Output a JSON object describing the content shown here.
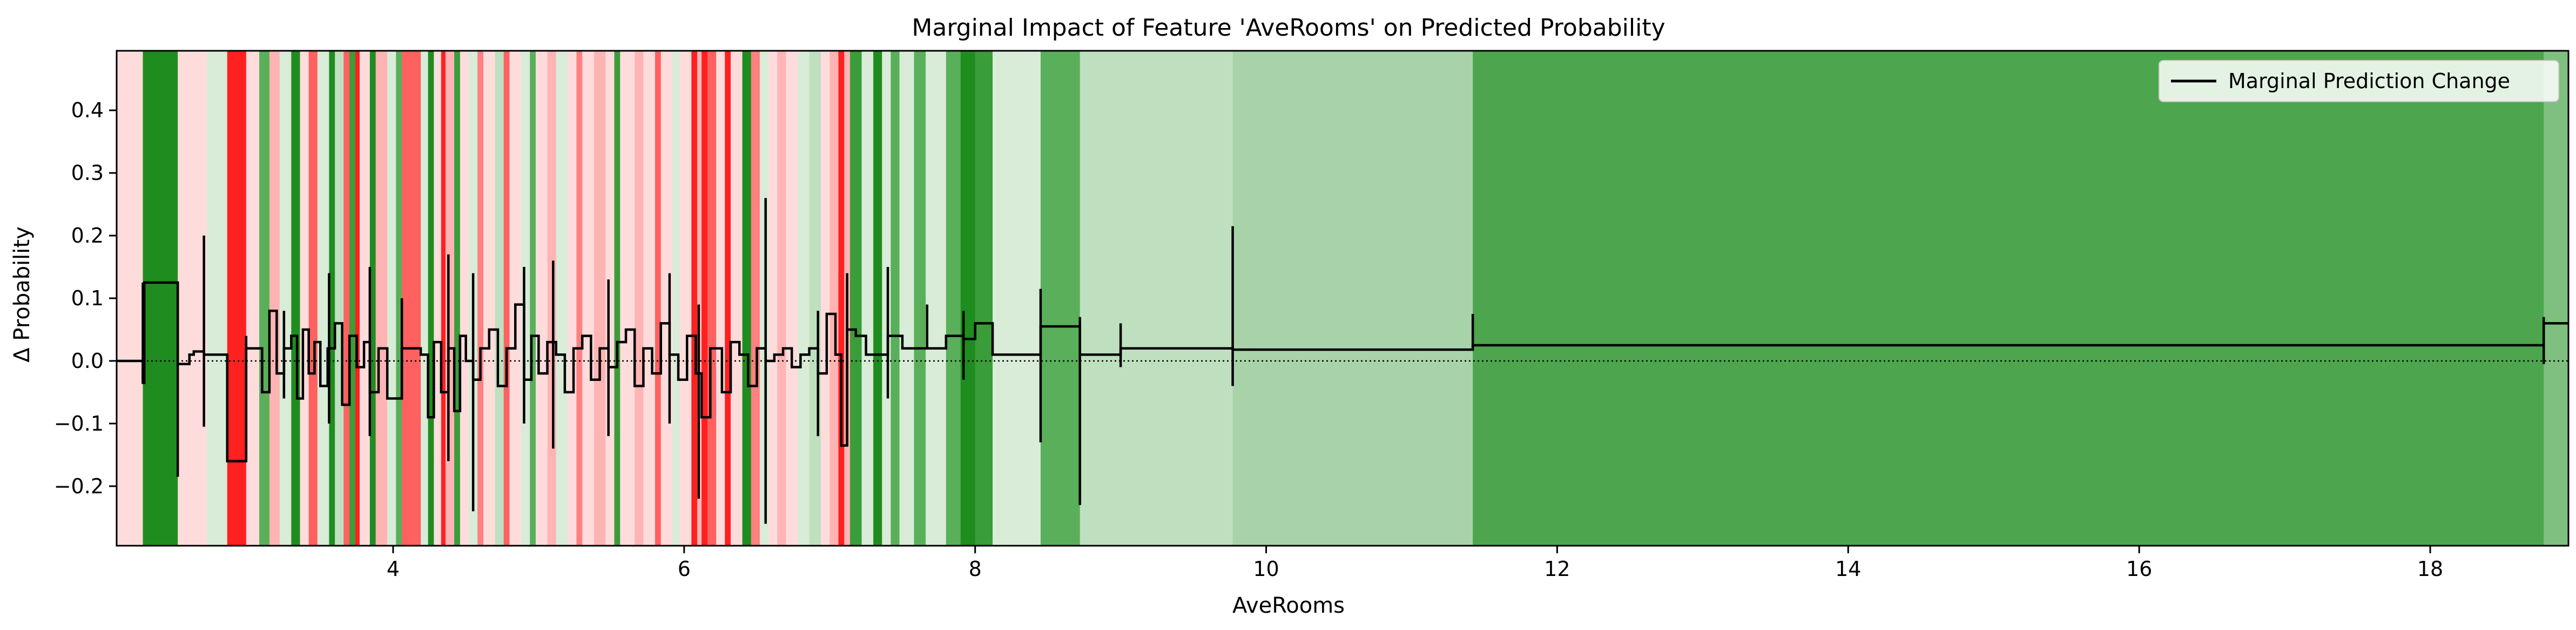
{
  "chart_data": {
    "type": "line",
    "title": "Marginal Impact of Feature 'AveRooms' on Predicted Probability",
    "xlabel": "AveRooms",
    "ylabel": "Δ Probability",
    "xlim": [
      2.1,
      18.95
    ],
    "ylim": [
      -0.295,
      0.495
    ],
    "x_ticks": [
      4,
      6,
      8,
      10,
      12,
      14,
      16,
      18
    ],
    "x_tick_labels": [
      "4",
      "6",
      "8",
      "10",
      "12",
      "14",
      "16",
      "18"
    ],
    "y_ticks": [
      -0.2,
      -0.1,
      0.0,
      0.1,
      0.2,
      0.3,
      0.4
    ],
    "y_tick_labels": [
      "−0.2",
      "−0.1",
      "0.0",
      "0.1",
      "0.2",
      "0.3",
      "0.4"
    ],
    "legend": {
      "position": "upper-right",
      "entries": [
        "Marginal Prediction Change"
      ]
    },
    "zero_line": {
      "y": 0.0,
      "style": "dotted"
    },
    "background_bands": [
      {
        "x0": 2.1,
        "x1": 2.28,
        "color": "#ffdcdc"
      },
      {
        "x0": 2.28,
        "x1": 2.52,
        "color": "#1f8c1f"
      },
      {
        "x0": 2.52,
        "x1": 2.72,
        "color": "#ffdcdc"
      },
      {
        "x0": 2.72,
        "x1": 2.86,
        "color": "#d8ecd8"
      },
      {
        "x0": 2.86,
        "x1": 2.99,
        "color": "#ff2020"
      },
      {
        "x0": 2.99,
        "x1": 3.08,
        "color": "#ffdcdc"
      },
      {
        "x0": 3.08,
        "x1": 3.15,
        "color": "#5aaf5a"
      },
      {
        "x0": 3.15,
        "x1": 3.22,
        "color": "#ffb4b4"
      },
      {
        "x0": 3.22,
        "x1": 3.3,
        "color": "#d8ecd8"
      },
      {
        "x0": 3.3,
        "x1": 3.36,
        "color": "#1f8c1f"
      },
      {
        "x0": 3.36,
        "x1": 3.42,
        "color": "#ffdcdc"
      },
      {
        "x0": 3.42,
        "x1": 3.48,
        "color": "#ff6060"
      },
      {
        "x0": 3.48,
        "x1": 3.56,
        "color": "#d8ecd8"
      },
      {
        "x0": 3.56,
        "x1": 3.6,
        "color": "#1f8c1f"
      },
      {
        "x0": 3.6,
        "x1": 3.66,
        "color": "#bfe0bf"
      },
      {
        "x0": 3.66,
        "x1": 3.7,
        "color": "#ff6060"
      },
      {
        "x0": 3.7,
        "x1": 3.74,
        "color": "#3a9d3a"
      },
      {
        "x0": 3.74,
        "x1": 3.77,
        "color": "#ff2020"
      },
      {
        "x0": 3.77,
        "x1": 3.84,
        "color": "#ffdcdc"
      },
      {
        "x0": 3.84,
        "x1": 3.88,
        "color": "#1f8c1f"
      },
      {
        "x0": 3.88,
        "x1": 3.96,
        "color": "#ffb4b4"
      },
      {
        "x0": 3.96,
        "x1": 4.02,
        "color": "#d8ecd8"
      },
      {
        "x0": 4.02,
        "x1": 4.06,
        "color": "#5aaf5a"
      },
      {
        "x0": 4.06,
        "x1": 4.19,
        "color": "#ff6060"
      },
      {
        "x0": 4.19,
        "x1": 4.24,
        "color": "#d8ecd8"
      },
      {
        "x0": 4.24,
        "x1": 4.28,
        "color": "#1f8c1f"
      },
      {
        "x0": 4.28,
        "x1": 4.33,
        "color": "#ffdcdc"
      },
      {
        "x0": 4.33,
        "x1": 4.36,
        "color": "#ff2020"
      },
      {
        "x0": 4.36,
        "x1": 4.42,
        "color": "#ffb4b4"
      },
      {
        "x0": 4.42,
        "x1": 4.46,
        "color": "#3a9d3a"
      },
      {
        "x0": 4.46,
        "x1": 4.52,
        "color": "#ffdcdc"
      },
      {
        "x0": 4.52,
        "x1": 4.58,
        "color": "#d8ecd8"
      },
      {
        "x0": 4.58,
        "x1": 4.62,
        "color": "#ff8080"
      },
      {
        "x0": 4.62,
        "x1": 4.7,
        "color": "#ffdcdc"
      },
      {
        "x0": 4.7,
        "x1": 4.76,
        "color": "#bfe0bf"
      },
      {
        "x0": 4.76,
        "x1": 4.8,
        "color": "#ff6060"
      },
      {
        "x0": 4.8,
        "x1": 4.88,
        "color": "#ffdcdc"
      },
      {
        "x0": 4.88,
        "x1": 4.94,
        "color": "#d8ecd8"
      },
      {
        "x0": 4.94,
        "x1": 4.98,
        "color": "#5aaf5a"
      },
      {
        "x0": 4.98,
        "x1": 5.06,
        "color": "#ffdcdc"
      },
      {
        "x0": 5.06,
        "x1": 5.12,
        "color": "#ffb4b4"
      },
      {
        "x0": 5.12,
        "x1": 5.2,
        "color": "#d8ecd8"
      },
      {
        "x0": 5.2,
        "x1": 5.26,
        "color": "#ffdcdc"
      },
      {
        "x0": 5.26,
        "x1": 5.3,
        "color": "#ff8080"
      },
      {
        "x0": 5.3,
        "x1": 5.38,
        "color": "#ffdcdc"
      },
      {
        "x0": 5.38,
        "x1": 5.46,
        "color": "#ffb4b4"
      },
      {
        "x0": 5.46,
        "x1": 5.52,
        "color": "#ffdcdc"
      },
      {
        "x0": 5.52,
        "x1": 5.56,
        "color": "#3a9d3a"
      },
      {
        "x0": 5.56,
        "x1": 5.66,
        "color": "#ffdcdc"
      },
      {
        "x0": 5.66,
        "x1": 5.72,
        "color": "#ffb4b4"
      },
      {
        "x0": 5.72,
        "x1": 5.8,
        "color": "#ffdcdc"
      },
      {
        "x0": 5.8,
        "x1": 5.84,
        "color": "#ff6060"
      },
      {
        "x0": 5.84,
        "x1": 5.92,
        "color": "#ffdcdc"
      },
      {
        "x0": 5.92,
        "x1": 5.97,
        "color": "#d8ecd8"
      },
      {
        "x0": 5.97,
        "x1": 6.05,
        "color": "#ffdcdc"
      },
      {
        "x0": 6.05,
        "x1": 6.09,
        "color": "#ff2020"
      },
      {
        "x0": 6.09,
        "x1": 6.12,
        "color": "#ffb4b4"
      },
      {
        "x0": 6.12,
        "x1": 6.16,
        "color": "#ff2020"
      },
      {
        "x0": 6.16,
        "x1": 6.22,
        "color": "#ff6060"
      },
      {
        "x0": 6.22,
        "x1": 6.28,
        "color": "#ffdcdc"
      },
      {
        "x0": 6.28,
        "x1": 6.32,
        "color": "#ff2020"
      },
      {
        "x0": 6.32,
        "x1": 6.4,
        "color": "#ffdcdc"
      },
      {
        "x0": 6.4,
        "x1": 6.46,
        "color": "#1f8c1f"
      },
      {
        "x0": 6.46,
        "x1": 6.52,
        "color": "#ff8080"
      },
      {
        "x0": 6.52,
        "x1": 6.58,
        "color": "#d8ecd8"
      },
      {
        "x0": 6.58,
        "x1": 6.64,
        "color": "#ffdcdc"
      },
      {
        "x0": 6.64,
        "x1": 6.7,
        "color": "#ffb4b4"
      },
      {
        "x0": 6.7,
        "x1": 6.78,
        "color": "#ffdcdc"
      },
      {
        "x0": 6.78,
        "x1": 6.86,
        "color": "#d8ecd8"
      },
      {
        "x0": 6.86,
        "x1": 6.94,
        "color": "#bfe0bf"
      },
      {
        "x0": 6.94,
        "x1": 7.0,
        "color": "#ffdcdc"
      },
      {
        "x0": 7.0,
        "x1": 7.06,
        "color": "#ffb4b4"
      },
      {
        "x0": 7.06,
        "x1": 7.1,
        "color": "#ff2020"
      },
      {
        "x0": 7.1,
        "x1": 7.14,
        "color": "#ffb4b4"
      },
      {
        "x0": 7.14,
        "x1": 7.22,
        "color": "#3a9d3a"
      },
      {
        "x0": 7.22,
        "x1": 7.3,
        "color": "#d8ecd8"
      },
      {
        "x0": 7.3,
        "x1": 7.36,
        "color": "#1f8c1f"
      },
      {
        "x0": 7.36,
        "x1": 7.42,
        "color": "#d8ecd8"
      },
      {
        "x0": 7.42,
        "x1": 7.48,
        "color": "#5aaf5a"
      },
      {
        "x0": 7.48,
        "x1": 7.58,
        "color": "#d8ecd8"
      },
      {
        "x0": 7.58,
        "x1": 7.66,
        "color": "#5aaf5a"
      },
      {
        "x0": 7.66,
        "x1": 7.8,
        "color": "#d8ecd8"
      },
      {
        "x0": 7.8,
        "x1": 7.9,
        "color": "#5aaf5a"
      },
      {
        "x0": 7.9,
        "x1": 8.0,
        "color": "#1f8c1f"
      },
      {
        "x0": 8.0,
        "x1": 8.12,
        "color": "#3a9d3a"
      },
      {
        "x0": 8.12,
        "x1": 8.45,
        "color": "#d8ecd8"
      },
      {
        "x0": 8.45,
        "x1": 8.72,
        "color": "#5aaf5a"
      },
      {
        "x0": 8.72,
        "x1": 9.0,
        "color": "#bfe0bf"
      },
      {
        "x0": 9.0,
        "x1": 9.77,
        "color": "#bfe0bf"
      },
      {
        "x0": 9.77,
        "x1": 11.42,
        "color": "#a8d3a8"
      },
      {
        "x0": 11.42,
        "x1": 18.78,
        "color": "#4da64d"
      },
      {
        "x0": 18.78,
        "x1": 18.95,
        "color": "#7fbf7f"
      }
    ],
    "series": [
      {
        "name": "Marginal Prediction Change",
        "color": "#000000",
        "style": "step",
        "x": [
          2.1,
          2.28,
          2.29,
          2.52,
          2.53,
          2.6,
          2.63,
          2.7,
          2.82,
          2.86,
          2.99,
          3.05,
          3.1,
          3.15,
          3.2,
          3.25,
          3.3,
          3.34,
          3.38,
          3.42,
          3.46,
          3.5,
          3.55,
          3.6,
          3.65,
          3.7,
          3.75,
          3.8,
          3.84,
          3.9,
          3.96,
          4.0,
          4.06,
          4.19,
          4.24,
          4.28,
          4.33,
          4.38,
          4.42,
          4.46,
          4.5,
          4.55,
          4.6,
          4.66,
          4.72,
          4.78,
          4.84,
          4.9,
          4.95,
          5.0,
          5.06,
          5.12,
          5.18,
          5.24,
          5.3,
          5.36,
          5.42,
          5.48,
          5.54,
          5.6,
          5.66,
          5.72,
          5.78,
          5.84,
          5.9,
          5.96,
          6.02,
          6.08,
          6.12,
          6.18,
          6.26,
          6.32,
          6.38,
          6.44,
          6.5,
          6.56,
          6.62,
          6.68,
          6.74,
          6.8,
          6.86,
          6.92,
          6.98,
          7.04,
          7.08,
          7.12,
          7.18,
          7.25,
          7.4,
          7.5,
          7.6,
          7.67,
          7.8,
          7.92,
          8.0,
          8.12,
          8.3,
          8.45,
          8.72,
          9.0,
          9.77,
          11.42,
          18.78,
          18.95
        ],
        "y": [
          0.0,
          -0.035,
          0.125,
          -0.005,
          -0.005,
          0.01,
          0.015,
          0.01,
          0.01,
          -0.16,
          0.02,
          0.02,
          -0.05,
          0.08,
          -0.02,
          0.02,
          0.04,
          -0.06,
          0.05,
          -0.02,
          0.03,
          -0.04,
          0.02,
          0.06,
          -0.07,
          0.04,
          -0.01,
          0.03,
          -0.05,
          0.02,
          -0.06,
          -0.06,
          0.02,
          0.01,
          -0.09,
          0.03,
          -0.05,
          0.02,
          -0.08,
          0.04,
          0.0,
          -0.03,
          0.02,
          0.05,
          -0.04,
          0.02,
          0.09,
          -0.03,
          0.04,
          -0.02,
          0.03,
          0.01,
          -0.05,
          0.02,
          0.04,
          -0.03,
          0.02,
          -0.01,
          0.03,
          0.05,
          -0.04,
          0.02,
          -0.02,
          0.06,
          0.01,
          -0.03,
          0.04,
          -0.02,
          -0.09,
          0.02,
          -0.05,
          0.03,
          0.01,
          -0.04,
          0.02,
          0.0,
          0.01,
          0.02,
          -0.01,
          0.01,
          0.02,
          -0.02,
          0.075,
          0.01,
          -0.135,
          0.05,
          0.04,
          0.01,
          0.04,
          0.02,
          0.02,
          0.02,
          0.04,
          0.035,
          0.06,
          0.01,
          0.01,
          0.055,
          0.01,
          0.02,
          0.018,
          0.025,
          0.06,
          0.06
        ],
        "spikes": [
          {
            "x": 2.28,
            "ymin": -0.035,
            "ymax": 0.125
          },
          {
            "x": 2.52,
            "ymin": -0.185,
            "ymax": 0.125
          },
          {
            "x": 2.7,
            "ymin": -0.105,
            "ymax": 0.2
          },
          {
            "x": 2.86,
            "ymin": -0.16,
            "ymax": 0.01
          },
          {
            "x": 2.99,
            "ymin": -0.16,
            "ymax": 0.04
          },
          {
            "x": 3.25,
            "ymin": -0.06,
            "ymax": 0.08
          },
          {
            "x": 3.56,
            "ymin": -0.1,
            "ymax": 0.14
          },
          {
            "x": 3.84,
            "ymin": -0.12,
            "ymax": 0.15
          },
          {
            "x": 4.06,
            "ymin": -0.06,
            "ymax": 0.1
          },
          {
            "x": 4.38,
            "ymin": -0.16,
            "ymax": 0.17
          },
          {
            "x": 4.55,
            "ymin": -0.24,
            "ymax": 0.14
          },
          {
            "x": 4.9,
            "ymin": -0.1,
            "ymax": 0.15
          },
          {
            "x": 5.1,
            "ymin": -0.14,
            "ymax": 0.16
          },
          {
            "x": 5.48,
            "ymin": -0.12,
            "ymax": 0.13
          },
          {
            "x": 5.9,
            "ymin": -0.1,
            "ymax": 0.14
          },
          {
            "x": 6.1,
            "ymin": -0.22,
            "ymax": 0.09
          },
          {
            "x": 6.56,
            "ymin": -0.26,
            "ymax": 0.26
          },
          {
            "x": 6.92,
            "ymin": -0.12,
            "ymax": 0.08
          },
          {
            "x": 7.12,
            "ymin": -0.135,
            "ymax": 0.14
          },
          {
            "x": 7.4,
            "ymin": -0.06,
            "ymax": 0.15
          },
          {
            "x": 7.67,
            "ymin": 0.02,
            "ymax": 0.09
          },
          {
            "x": 7.92,
            "ymin": -0.03,
            "ymax": 0.08
          },
          {
            "x": 8.45,
            "ymin": -0.13,
            "ymax": 0.115
          },
          {
            "x": 8.72,
            "ymin": -0.23,
            "ymax": 0.07
          },
          {
            "x": 9.0,
            "ymin": -0.01,
            "ymax": 0.06
          },
          {
            "x": 9.77,
            "ymin": -0.04,
            "ymax": 0.215
          },
          {
            "x": 11.42,
            "ymin": 0.02,
            "ymax": 0.075
          },
          {
            "x": 18.78,
            "ymin": -0.005,
            "ymax": 0.07
          }
        ]
      }
    ]
  }
}
